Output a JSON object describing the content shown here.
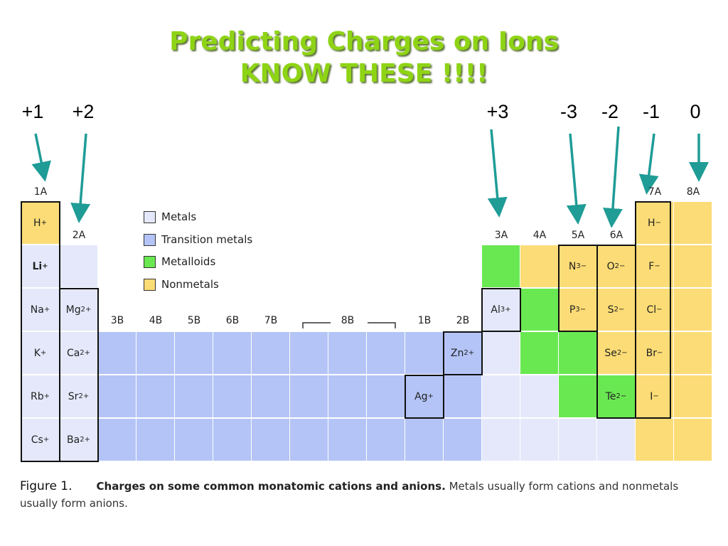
{
  "title": {
    "line1": "Predicting Charges on Ions",
    "line2": "KNOW THESE !!!!"
  },
  "charges": [
    "+1",
    "+2",
    "+3",
    "-3",
    "-2",
    "-1",
    "0"
  ],
  "group_labels": {
    "1A": "1A",
    "2A": "2A",
    "3B": "3B",
    "4B": "4B",
    "5B": "5B",
    "6B": "6B",
    "7B": "7B",
    "8B": "8B",
    "1B": "1B",
    "2B": "2B",
    "3A": "3A",
    "4A": "4A",
    "5A": "5A",
    "6A": "6A",
    "7A": "7A",
    "8A": "8A"
  },
  "legend": [
    {
      "label": "Metals",
      "color": "#e4e8fa"
    },
    {
      "label": "Transition metals",
      "color": "#b4c4f6"
    },
    {
      "label": "Metalloids",
      "color": "#6ae852"
    },
    {
      "label": "Nonmetals",
      "color": "#fcdc76"
    }
  ],
  "ions": {
    "H_plus": {
      "sym": "H",
      "chg": "+"
    },
    "Li": {
      "sym": "Li",
      "chg": "+"
    },
    "Na": {
      "sym": "Na",
      "chg": "+"
    },
    "K": {
      "sym": "K",
      "chg": "+"
    },
    "Rb": {
      "sym": "Rb",
      "chg": "+"
    },
    "Cs": {
      "sym": "Cs",
      "chg": "+"
    },
    "Mg": {
      "sym": "Mg",
      "chg": "2+"
    },
    "Ca": {
      "sym": "Ca",
      "chg": "2+"
    },
    "Sr": {
      "sym": "Sr",
      "chg": "2+"
    },
    "Ba": {
      "sym": "Ba",
      "chg": "2+"
    },
    "Ag": {
      "sym": "Ag",
      "chg": "+"
    },
    "Zn": {
      "sym": "Zn",
      "chg": "2+"
    },
    "Al": {
      "sym": "Al",
      "chg": "3+"
    },
    "N": {
      "sym": "N",
      "chg": "3−"
    },
    "P": {
      "sym": "P",
      "chg": "3−"
    },
    "O": {
      "sym": "O",
      "chg": "2−"
    },
    "S": {
      "sym": "S",
      "chg": "2−"
    },
    "Se": {
      "sym": "Se",
      "chg": "2−"
    },
    "Te": {
      "sym": "Te",
      "chg": "2−"
    },
    "H_minus": {
      "sym": "H",
      "chg": "−"
    },
    "F": {
      "sym": "F",
      "chg": "−"
    },
    "Cl": {
      "sym": "Cl",
      "chg": "−"
    },
    "Br": {
      "sym": "Br",
      "chg": "−"
    },
    "I": {
      "sym": "I",
      "chg": "−"
    }
  },
  "caption": {
    "figure": "Figure 1.",
    "bold": "Charges on some common monatomic cations and anions.",
    "rest": " Metals usually form cations and nonmetals usually form anions."
  },
  "colors": {
    "title": "#8ed415",
    "arrow": "#1f9c96",
    "metal": "#e4e8fa",
    "transition": "#b4c4f6",
    "metalloid": "#6ae852",
    "nonmetal": "#fcdc76"
  }
}
